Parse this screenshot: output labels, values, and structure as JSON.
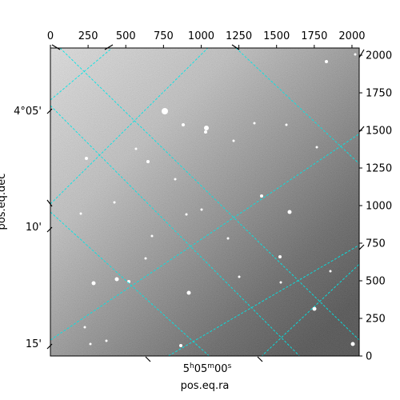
{
  "chart_data": {
    "type": "heatmap",
    "description_of_image": "",
    "pixel_axes": {
      "x_range": [
        0,
        2048
      ],
      "y_range": [
        0,
        2048
      ],
      "x_ticks": [
        0,
        250,
        500,
        750,
        1000,
        1250,
        1500,
        1750,
        2000
      ],
      "y_ticks": [
        0,
        250,
        500,
        750,
        1000,
        1250,
        1500,
        1750,
        2000
      ],
      "x_tick_position": "top",
      "y_tick_position": "right"
    },
    "world_axes": {
      "xlabel": "pos.eq.ra",
      "ylabel": "pos.eq.dec",
      "ra_tick_labels": [
        "5h05m00s"
      ],
      "dec_tick_labels": [
        "4°05'",
        "10'",
        "15'"
      ]
    },
    "grid": true,
    "grid_color": "#00e5e5",
    "colormap": "gray"
  }
}
